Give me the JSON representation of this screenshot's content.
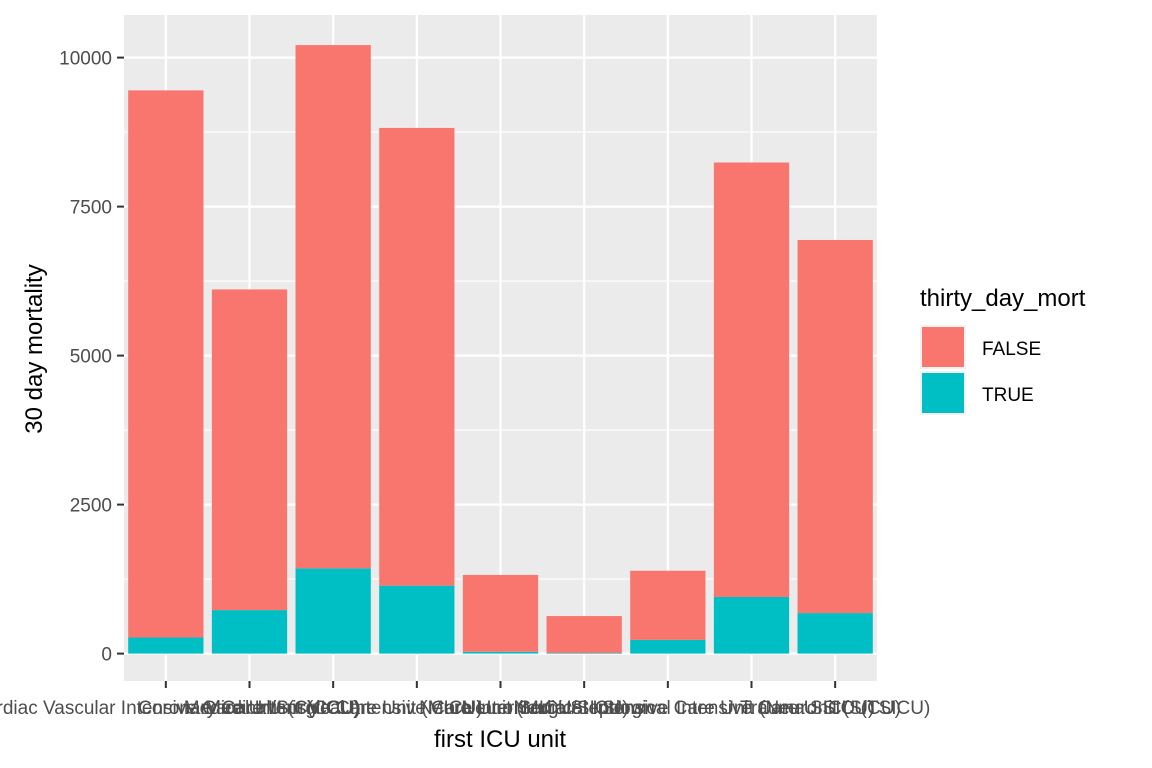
{
  "chart_data": {
    "type": "bar",
    "stacked": true,
    "title": "",
    "xlabel": "first ICU unit",
    "ylabel": "30 day mortality",
    "ylim": [
      0,
      10500
    ],
    "y_ticks": [
      0,
      2500,
      5000,
      7500,
      10000
    ],
    "y_tick_labels": [
      "0",
      "2500",
      "5000",
      "7500",
      "10000"
    ],
    "grid": true,
    "categories": [
      "Cardiac Vascular Intensive Care Unit (CVICU)",
      "Coronary Care Unit (CCU)",
      "Medical Intensive Care Unit (MICU)",
      "Medical/Surgical Intensive Care Unit (MICU/SICU)",
      "Neuro Intermediate",
      "Neuro Stepdown",
      "Neuro Surgical Intensive Care Unit (Neuro SICU)",
      "Surgical Intensive Care Unit (SICU)",
      "Trauma SICU (TSICU)"
    ],
    "series": [
      {
        "name": "FALSE",
        "color": "#F8766D",
        "values": [
          9180,
          5380,
          8780,
          7680,
          1290,
          620,
          1160,
          7290,
          6260
        ]
      },
      {
        "name": "TRUE",
        "color": "#00BFC4",
        "values": [
          270,
          730,
          1430,
          1140,
          30,
          10,
          230,
          950,
          680
        ]
      }
    ],
    "legend": {
      "title": "thirty_day_mort",
      "position": "right",
      "entries": [
        "FALSE",
        "TRUE"
      ]
    }
  }
}
